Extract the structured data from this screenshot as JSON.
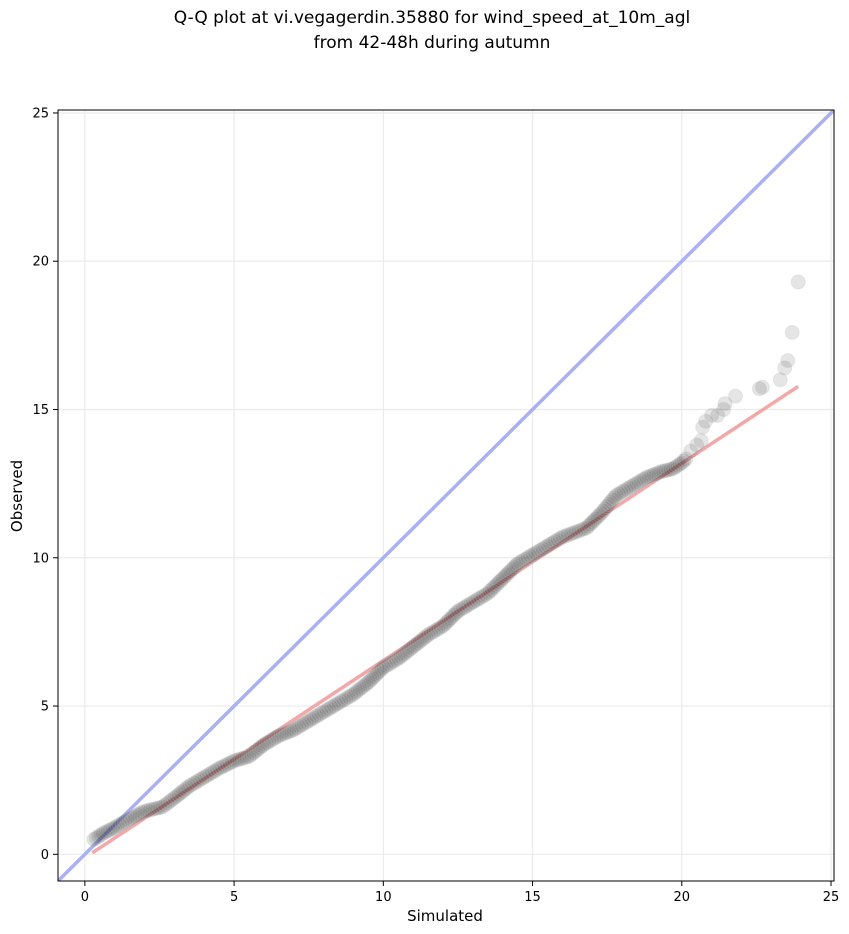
{
  "chart_data": {
    "type": "scatter",
    "title_lines": [
      "Q-Q plot at vi.vegagerdin.35880 for wind_speed_at_10m_agl",
      "from 42-48h during autumn"
    ],
    "xlabel": "Simulated",
    "ylabel": "Observed",
    "xlim": [
      -0.9,
      25.1
    ],
    "ylim": [
      -0.9,
      25.1
    ],
    "xticks": [
      0,
      5,
      10,
      15,
      20,
      25
    ],
    "yticks": [
      0,
      5,
      10,
      15,
      20,
      25
    ],
    "grid": true,
    "identity_line": {
      "color": "#aab0f5"
    },
    "fit_line": {
      "color": "#f3a8a8",
      "x": [
        0.25,
        23.9
      ],
      "y": [
        0.05,
        15.78
      ]
    },
    "marker_color": "#000000",
    "marker_edge": "#bbbbbb",
    "quantile_anchors": [
      [
        0.3,
        0.5
      ],
      [
        0.6,
        0.7
      ],
      [
        1.0,
        0.9
      ],
      [
        1.5,
        1.2
      ],
      [
        2.0,
        1.45
      ],
      [
        2.6,
        1.6
      ],
      [
        3.0,
        1.9
      ],
      [
        3.5,
        2.3
      ],
      [
        4.0,
        2.6
      ],
      [
        4.5,
        2.9
      ],
      [
        5.0,
        3.15
      ],
      [
        5.5,
        3.3
      ],
      [
        6.0,
        3.7
      ],
      [
        6.5,
        4.0
      ],
      [
        7.0,
        4.2
      ],
      [
        7.5,
        4.5
      ],
      [
        8.0,
        4.8
      ],
      [
        8.5,
        5.1
      ],
      [
        9.0,
        5.4
      ],
      [
        9.5,
        5.8
      ],
      [
        10.0,
        6.3
      ],
      [
        10.5,
        6.6
      ],
      [
        11.0,
        7.0
      ],
      [
        11.5,
        7.4
      ],
      [
        12.0,
        7.7
      ],
      [
        12.5,
        8.2
      ],
      [
        13.0,
        8.5
      ],
      [
        13.5,
        8.8
      ],
      [
        14.0,
        9.3
      ],
      [
        14.5,
        9.8
      ],
      [
        15.0,
        10.1
      ],
      [
        15.5,
        10.4
      ],
      [
        16.0,
        10.7
      ],
      [
        16.8,
        11.0
      ],
      [
        17.3,
        11.5
      ],
      [
        17.8,
        12.1
      ],
      [
        18.3,
        12.4
      ],
      [
        18.8,
        12.7
      ],
      [
        19.3,
        12.9
      ],
      [
        19.7,
        13.0
      ],
      [
        20.0,
        13.2
      ],
      [
        20.2,
        13.4
      ]
    ],
    "tail_points": [
      [
        20.3,
        13.6
      ],
      [
        20.5,
        13.8
      ],
      [
        20.65,
        13.95
      ],
      [
        20.7,
        14.4
      ],
      [
        20.8,
        14.6
      ],
      [
        21.0,
        14.8
      ],
      [
        21.2,
        14.8
      ],
      [
        21.4,
        15.0
      ],
      [
        21.45,
        15.2
      ],
      [
        21.8,
        15.45
      ],
      [
        22.6,
        15.7
      ],
      [
        22.7,
        15.75
      ],
      [
        23.3,
        16.0
      ],
      [
        23.45,
        16.4
      ],
      [
        23.55,
        16.65
      ],
      [
        23.7,
        17.6
      ],
      [
        23.9,
        19.3
      ]
    ]
  }
}
